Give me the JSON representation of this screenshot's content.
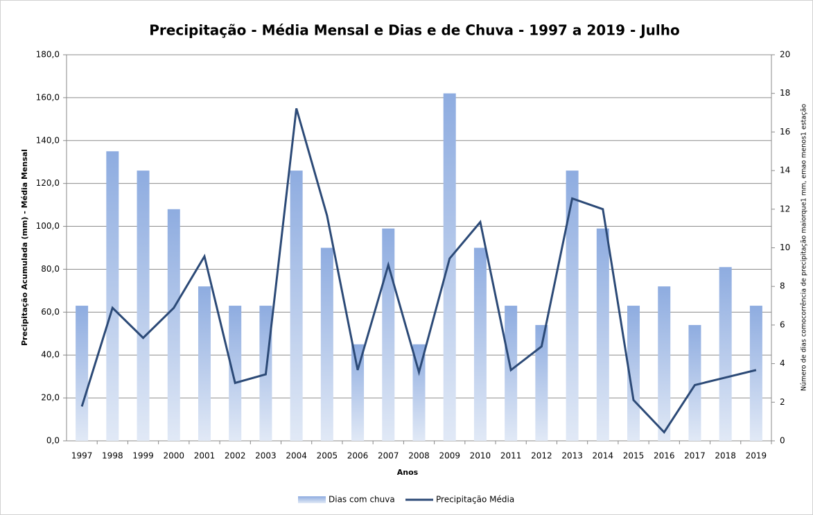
{
  "chart_data": {
    "type": "bar-line",
    "title": "Precipitação - Média Mensal e Dias e de Chuva - 1997 a 2019 - Julho",
    "x_label": "Anos",
    "y_label": "Precipitação Acumulada (mm) - Média Mensal",
    "y2_label": "Número de dias comocorrência de precipitação maiorque1 mm, emao menos1 estação",
    "categories": [
      "1997",
      "1998",
      "1999",
      "2000",
      "2001",
      "2002",
      "2003",
      "2004",
      "2005",
      "2006",
      "2007",
      "2008",
      "2009",
      "2010",
      "2011",
      "2012",
      "2013",
      "2014",
      "2015",
      "2016",
      "2017",
      "2018",
      "2019"
    ],
    "series": [
      {
        "name": "Dias com chuva",
        "type": "bar",
        "axis": "y2",
        "color": "#95b3e3",
        "values": [
          7,
          15,
          14,
          12,
          8,
          7,
          7,
          14,
          10,
          5,
          11,
          5,
          18,
          10,
          7,
          6,
          14,
          11,
          7,
          8,
          6,
          9,
          7
        ]
      },
      {
        "name": "Precipitação Média",
        "type": "line",
        "axis": "y",
        "color": "#2c4a77",
        "values": [
          16,
          62,
          48,
          62,
          86,
          27,
          31,
          155,
          105,
          33,
          82,
          32,
          85,
          102,
          33,
          44,
          113,
          108,
          19,
          4,
          26,
          29.5,
          33
        ]
      }
    ],
    "ylim": [
      0,
      180
    ],
    "yticks": [
      {
        "value": 0,
        "label": "0,0"
      },
      {
        "value": 20,
        "label": "20,0"
      },
      {
        "value": 40,
        "label": "40,0"
      },
      {
        "value": 60,
        "label": "60,0"
      },
      {
        "value": 80,
        "label": "80,0"
      },
      {
        "value": 100,
        "label": "100,0"
      },
      {
        "value": 120,
        "label": "120,0"
      },
      {
        "value": 140,
        "label": "140,0"
      },
      {
        "value": 160,
        "label": "160,0"
      },
      {
        "value": 180,
        "label": "180,0"
      }
    ],
    "y2lim": [
      0,
      20
    ],
    "y2ticks": [
      0,
      2,
      4,
      6,
      8,
      10,
      12,
      14,
      16,
      18,
      20
    ],
    "grid": true
  }
}
